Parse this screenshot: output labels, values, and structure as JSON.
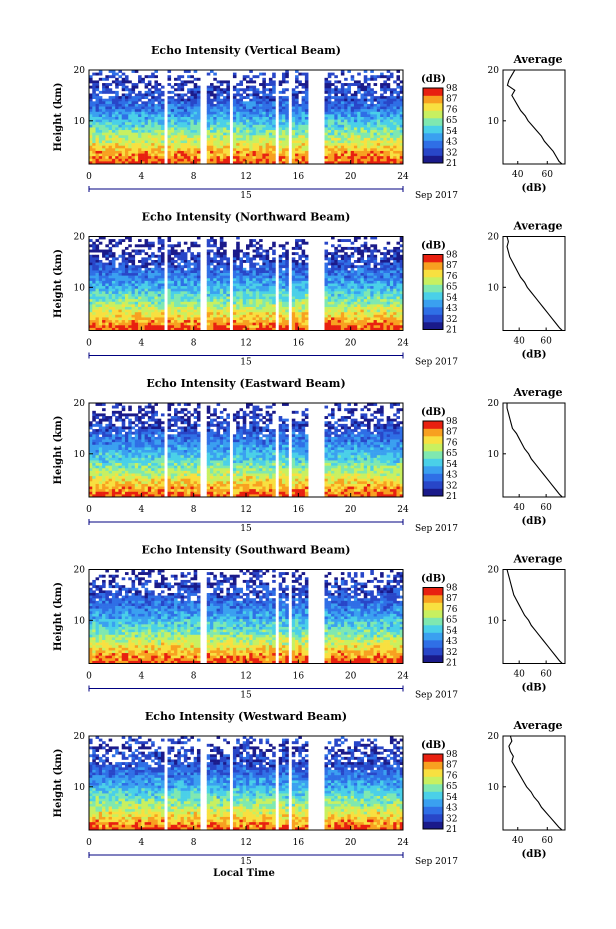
{
  "figure": {
    "xlabel": "Local Time",
    "date_label": "Sep 2017",
    "date_day": "15",
    "avg_title": "Average",
    "avg_xlabel": "(dB)",
    "cbar_label": "(dB)",
    "colors": {
      "colormap": [
        "#1a1a8a",
        "#2846c8",
        "#2f6fe6",
        "#3aa0f0",
        "#4ad0e8",
        "#7fe8b0",
        "#c8f060",
        "#f8e040",
        "#f8a020",
        "#e82010"
      ],
      "gap": "#ffffff",
      "axis": "#000000",
      "date_axis": "#000080"
    }
  },
  "chart_data": [
    {
      "type": "heatmap",
      "title": "Echo Intensity (Vertical Beam)",
      "xlabel": "",
      "ylabel": "Height (km)",
      "xlim": [
        0,
        24
      ],
      "ylim": [
        1.5,
        20
      ],
      "xticks": [
        0,
        4,
        8,
        12,
        16,
        20,
        24
      ],
      "yticks": [
        10,
        20
      ],
      "colorbar": {
        "label": "(dB)",
        "ticks": [
          98,
          87,
          76,
          65,
          54,
          43,
          32,
          21
        ],
        "range": [
          21,
          98
        ]
      },
      "data_gaps_hours": [
        [
          5.7,
          6.0
        ],
        [
          8.5,
          8.9
        ],
        [
          10.8,
          11.1
        ],
        [
          14.3,
          14.6
        ],
        [
          15.2,
          15.5
        ],
        [
          16.8,
          18.0
        ]
      ],
      "average_profile": {
        "title": "Average",
        "xlabel": "(dB)",
        "xticks": [
          40,
          60
        ],
        "xlim": [
          30,
          72
        ],
        "ylim": [
          1.5,
          20
        ],
        "height_km": [
          1.5,
          2,
          3,
          4,
          5,
          6,
          7,
          8,
          9,
          10,
          11,
          12,
          13,
          14,
          15,
          16,
          17,
          18,
          19,
          20
        ],
        "db": [
          70,
          68,
          66,
          64,
          61,
          58,
          56,
          53,
          50,
          47,
          45,
          42,
          40,
          38,
          36,
          38,
          33,
          34,
          36,
          38
        ]
      }
    },
    {
      "type": "heatmap",
      "title": "Echo Intensity (Northward Beam)",
      "xlabel": "",
      "ylabel": "Height (km)",
      "xlim": [
        0,
        24
      ],
      "ylim": [
        1.5,
        20
      ],
      "xticks": [
        0,
        4,
        8,
        12,
        16,
        20,
        24
      ],
      "yticks": [
        10,
        20
      ],
      "colorbar": {
        "label": "(dB)",
        "ticks": [
          98,
          87,
          76,
          65,
          54,
          43,
          32,
          21
        ],
        "range": [
          21,
          98
        ]
      },
      "data_gaps_hours": [
        [
          5.7,
          6.0
        ],
        [
          8.5,
          8.9
        ],
        [
          10.8,
          11.1
        ],
        [
          14.3,
          14.6
        ],
        [
          15.2,
          15.5
        ],
        [
          16.8,
          18.0
        ]
      ],
      "average_profile": {
        "title": "Average",
        "xlabel": "(dB)",
        "xticks": [
          40,
          60
        ],
        "xlim": [
          28,
          74
        ],
        "ylim": [
          1.5,
          20
        ],
        "height_km": [
          1.5,
          2,
          3,
          4,
          5,
          6,
          7,
          8,
          9,
          10,
          11,
          12,
          13,
          14,
          15,
          16,
          17,
          18,
          19,
          20
        ],
        "db": [
          72,
          70,
          67,
          64,
          61,
          58,
          55,
          52,
          49,
          46,
          44,
          41,
          39,
          37,
          35,
          33,
          32,
          31,
          32,
          31
        ]
      }
    },
    {
      "type": "heatmap",
      "title": "Echo Intensity (Eastward Beam)",
      "xlabel": "",
      "ylabel": "Height (km)",
      "xlim": [
        0,
        24
      ],
      "ylim": [
        1.5,
        20
      ],
      "xticks": [
        0,
        4,
        8,
        12,
        16,
        20,
        24
      ],
      "yticks": [
        10,
        20
      ],
      "colorbar": {
        "label": "(dB)",
        "ticks": [
          98,
          87,
          76,
          65,
          54,
          43,
          32,
          21
        ],
        "range": [
          21,
          98
        ]
      },
      "data_gaps_hours": [
        [
          5.7,
          6.0
        ],
        [
          8.5,
          8.9
        ],
        [
          10.8,
          11.1
        ],
        [
          14.3,
          14.6
        ],
        [
          15.2,
          15.5
        ],
        [
          16.8,
          18.0
        ]
      ],
      "average_profile": {
        "title": "Average",
        "xlabel": "(dB)",
        "xticks": [
          40,
          60
        ],
        "xlim": [
          28,
          74
        ],
        "ylim": [
          1.5,
          20
        ],
        "height_km": [
          1.5,
          2,
          3,
          4,
          5,
          6,
          7,
          8,
          9,
          10,
          11,
          12,
          13,
          14,
          15,
          16,
          17,
          18,
          19,
          20
        ],
        "db": [
          72,
          70,
          67,
          64,
          61,
          58,
          55,
          52,
          49,
          47,
          44,
          42,
          40,
          38,
          35,
          34,
          33,
          32,
          31,
          31
        ]
      }
    },
    {
      "type": "heatmap",
      "title": "Echo Intensity (Southward Beam)",
      "xlabel": "",
      "ylabel": "Height (km)",
      "xlim": [
        0,
        24
      ],
      "ylim": [
        1.5,
        20
      ],
      "xticks": [
        0,
        4,
        8,
        12,
        16,
        20,
        24
      ],
      "yticks": [
        10,
        20
      ],
      "colorbar": {
        "label": "(dB)",
        "ticks": [
          98,
          87,
          76,
          65,
          54,
          43,
          32,
          21
        ],
        "range": [
          21,
          98
        ]
      },
      "data_gaps_hours": [
        [
          8.5,
          8.9
        ],
        [
          14.3,
          14.6
        ],
        [
          15.2,
          15.5
        ],
        [
          16.8,
          18.0
        ]
      ],
      "average_profile": {
        "title": "Average",
        "xlabel": "(dB)",
        "xticks": [
          40,
          60
        ],
        "xlim": [
          28,
          74
        ],
        "ylim": [
          1.5,
          20
        ],
        "height_km": [
          1.5,
          2,
          3,
          4,
          5,
          6,
          7,
          8,
          9,
          10,
          11,
          12,
          13,
          14,
          15,
          16,
          17,
          18,
          19,
          20
        ],
        "db": [
          72,
          70,
          67,
          64,
          61,
          58,
          55,
          52,
          49,
          47,
          44,
          42,
          40,
          38,
          36,
          35,
          34,
          33,
          32,
          31
        ]
      }
    },
    {
      "type": "heatmap",
      "title": "Echo Intensity (Westward Beam)",
      "xlabel": "Local Time",
      "ylabel": "Height (km)",
      "xlim": [
        0,
        24
      ],
      "ylim": [
        1.5,
        20
      ],
      "xticks": [
        0,
        4,
        8,
        12,
        16,
        20,
        24
      ],
      "yticks": [
        10,
        20
      ],
      "colorbar": {
        "label": "(dB)",
        "ticks": [
          98,
          87,
          76,
          65,
          54,
          43,
          32,
          21
        ],
        "range": [
          21,
          98
        ]
      },
      "data_gaps_hours": [
        [
          5.7,
          6.0
        ],
        [
          8.5,
          8.9
        ],
        [
          10.8,
          11.1
        ],
        [
          14.3,
          14.6
        ],
        [
          15.2,
          15.5
        ],
        [
          16.8,
          18.0
        ]
      ],
      "average_profile": {
        "title": "Average",
        "xlabel": "(dB)",
        "xticks": [
          40,
          60
        ],
        "xlim": [
          30,
          72
        ],
        "ylim": [
          1.5,
          20
        ],
        "height_km": [
          1.5,
          2,
          3,
          4,
          5,
          6,
          7,
          8,
          9,
          10,
          11,
          12,
          13,
          14,
          15,
          16,
          17,
          18,
          19,
          20
        ],
        "db": [
          70,
          68,
          65,
          62,
          59,
          56,
          54,
          51,
          49,
          46,
          44,
          42,
          40,
          38,
          36,
          37,
          35,
          34,
          36,
          35
        ]
      }
    }
  ]
}
